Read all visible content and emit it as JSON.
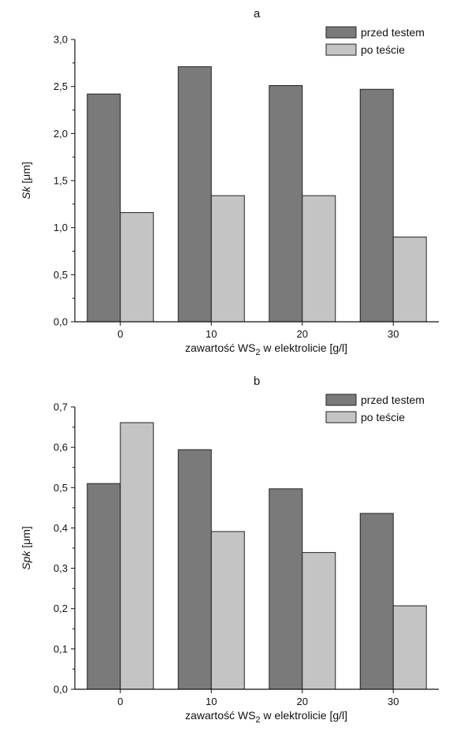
{
  "chart_data": [
    {
      "type": "bar",
      "title": "a",
      "categories": [
        "0",
        "10",
        "20",
        "30"
      ],
      "series": [
        {
          "name": "przed testem",
          "values": [
            2.42,
            2.71,
            2.51,
            2.47
          ],
          "color": "#7a7a7a"
        },
        {
          "name": "po teście",
          "values": [
            1.16,
            1.34,
            1.34,
            0.9
          ],
          "color": "#c4c4c4"
        }
      ],
      "ylabel_italic": "Sk",
      "ylabel_unit": " [μm]",
      "xlabel_pre": "zawartość WS",
      "xlabel_sub": "2",
      "xlabel_post": " w elektrolicie [g/l]",
      "ylim": [
        0,
        3.0
      ],
      "yticks": [
        "0,0",
        "0,5",
        "1,0",
        "1,5",
        "2,0",
        "2,5",
        "3,0"
      ],
      "ytick_values": [
        0,
        0.5,
        1.0,
        1.5,
        2.0,
        2.5,
        3.0
      ],
      "grid": false,
      "legend": "top-right"
    },
    {
      "type": "bar",
      "title": "b",
      "categories": [
        "0",
        "10",
        "20",
        "30"
      ],
      "series": [
        {
          "name": "przed testem",
          "values": [
            0.51,
            0.594,
            0.497,
            0.436
          ],
          "color": "#7a7a7a"
        },
        {
          "name": "po teście",
          "values": [
            0.661,
            0.391,
            0.339,
            0.207
          ],
          "color": "#c4c4c4"
        }
      ],
      "ylabel_italic": "Spk",
      "ylabel_unit": " [μm]",
      "xlabel_pre": "zawartość WS",
      "xlabel_sub": "2",
      "xlabel_post": " w elektrolicie [g/l]",
      "ylim": [
        0,
        0.7
      ],
      "yticks": [
        "0,0",
        "0,1",
        "0,2",
        "0,3",
        "0,4",
        "0,5",
        "0,6",
        "0,7"
      ],
      "ytick_values": [
        0,
        0.1,
        0.2,
        0.3,
        0.4,
        0.5,
        0.6,
        0.7
      ],
      "grid": false,
      "legend": "top-right"
    }
  ]
}
